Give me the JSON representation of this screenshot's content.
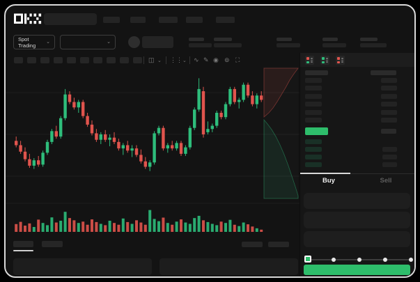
{
  "window": {
    "logo": "OKX"
  },
  "header": {
    "market_selector_label": "Spot Trading",
    "chevron_glyph": "⌄",
    "nav_pill_count": 5,
    "stat_group_count": 5
  },
  "chart_toolbar": {
    "timeframe_pill_count": 10,
    "icons": {
      "candle_type": "◫",
      "chevron": "⌄",
      "indicator": "⋮⋮",
      "wave": "∿",
      "pencil": "✎",
      "camera": "◉",
      "gear": "⊚",
      "fullscreen": "⛶"
    }
  },
  "orderbook": {
    "view_modes": [
      "book-both",
      "book-buys",
      "book-sells"
    ],
    "ask_row_count": 6,
    "bid_row_count": 4,
    "price_bar_color": "#2EBD6B"
  },
  "trade_panel": {
    "buy_tab_label": "Buy",
    "sell_tab_label": "Sell",
    "field_count": 3,
    "slider_stop_count": 5,
    "slider_selected_index": 0,
    "buy_button_color": "#2EBD6B"
  },
  "colors": {
    "up": "#2EBD7B",
    "down": "#E0544D",
    "background": "#131313",
    "panel": "#161616",
    "accent_green": "#2EBD6B"
  },
  "chart_data": {
    "type": "candlestick",
    "title": "",
    "xlabel": "",
    "ylabel": "",
    "note": "Skeleton UI: no numeric axis labels visible; OHLC values normalized 0-100 of pane height, volumes 0-100.",
    "grid": true,
    "candles": [
      [
        34,
        38,
        28,
        30
      ],
      [
        30,
        34,
        22,
        24
      ],
      [
        24,
        28,
        15,
        17
      ],
      [
        17,
        22,
        9,
        11
      ],
      [
        11,
        18,
        8,
        16
      ],
      [
        16,
        20,
        10,
        12
      ],
      [
        12,
        25,
        10,
        23
      ],
      [
        23,
        35,
        21,
        33
      ],
      [
        33,
        45,
        31,
        43
      ],
      [
        43,
        48,
        36,
        38
      ],
      [
        38,
        57,
        36,
        55
      ],
      [
        55,
        82,
        53,
        77
      ],
      [
        77,
        80,
        68,
        70
      ],
      [
        70,
        74,
        63,
        65
      ],
      [
        65,
        72,
        60,
        70
      ],
      [
        70,
        72,
        55,
        57
      ],
      [
        57,
        60,
        47,
        49
      ],
      [
        49,
        53,
        39,
        41
      ],
      [
        41,
        45,
        33,
        35
      ],
      [
        35,
        42,
        31,
        40
      ],
      [
        40,
        44,
        33,
        35
      ],
      [
        35,
        40,
        29,
        37
      ],
      [
        37,
        42,
        31,
        33
      ],
      [
        33,
        36,
        25,
        27
      ],
      [
        27,
        32,
        21,
        30
      ],
      [
        30,
        34,
        23,
        25
      ],
      [
        25,
        30,
        19,
        27
      ],
      [
        27,
        30,
        19,
        21
      ],
      [
        21,
        26,
        13,
        15
      ],
      [
        15,
        19,
        8,
        10
      ],
      [
        10,
        16,
        6,
        14
      ],
      [
        14,
        43,
        12,
        41
      ],
      [
        41,
        48,
        39,
        46
      ],
      [
        46,
        48,
        25,
        27
      ],
      [
        27,
        32,
        23,
        30
      ],
      [
        30,
        34,
        25,
        27
      ],
      [
        27,
        34,
        25,
        32
      ],
      [
        32,
        34,
        20,
        22
      ],
      [
        22,
        30,
        20,
        28
      ],
      [
        28,
        48,
        26,
        46
      ],
      [
        46,
        65,
        44,
        63
      ],
      [
        63,
        92,
        61,
        82
      ],
      [
        80,
        84,
        37,
        40
      ],
      [
        42,
        52,
        40,
        45
      ],
      [
        45,
        50,
        42,
        48
      ],
      [
        48,
        62,
        46,
        60
      ],
      [
        60,
        62,
        54,
        56
      ],
      [
        56,
        70,
        54,
        68
      ],
      [
        68,
        84,
        66,
        82
      ],
      [
        82,
        84,
        68,
        70
      ],
      [
        70,
        74,
        64,
        72
      ],
      [
        72,
        88,
        70,
        86
      ],
      [
        86,
        88,
        74,
        76
      ],
      [
        76,
        80,
        66,
        68
      ],
      [
        68,
        78,
        64,
        76
      ],
      [
        76,
        80,
        70,
        72
      ]
    ],
    "volumes": [
      35,
      45,
      28,
      38,
      22,
      55,
      40,
      30,
      65,
      42,
      50,
      90,
      62,
      52,
      40,
      46,
      32,
      56,
      44,
      36,
      30,
      50,
      40,
      32,
      60,
      44,
      36,
      52,
      42,
      32,
      98,
      58,
      48,
      64,
      40,
      32,
      46,
      56,
      42,
      36,
      62,
      72,
      52,
      44,
      36,
      30,
      46,
      40,
      54,
      32,
      26,
      42,
      34,
      24,
      16,
      10
    ],
    "depth_overlay": {
      "asks_polygon": [
        [
          371,
          2
        ],
        [
          371,
          72
        ],
        [
          378,
          66
        ],
        [
          384,
          59
        ],
        [
          390,
          50
        ],
        [
          396,
          40
        ],
        [
          402,
          30
        ],
        [
          408,
          19
        ],
        [
          414,
          10
        ],
        [
          420,
          2
        ]
      ],
      "bids_polygon": [
        [
          371,
          76
        ],
        [
          376,
          82
        ],
        [
          382,
          90
        ],
        [
          388,
          100
        ],
        [
          394,
          112
        ],
        [
          400,
          126
        ],
        [
          406,
          142
        ],
        [
          412,
          160
        ],
        [
          416,
          172
        ],
        [
          420,
          185
        ],
        [
          420,
          189
        ],
        [
          371,
          189
        ]
      ]
    }
  }
}
